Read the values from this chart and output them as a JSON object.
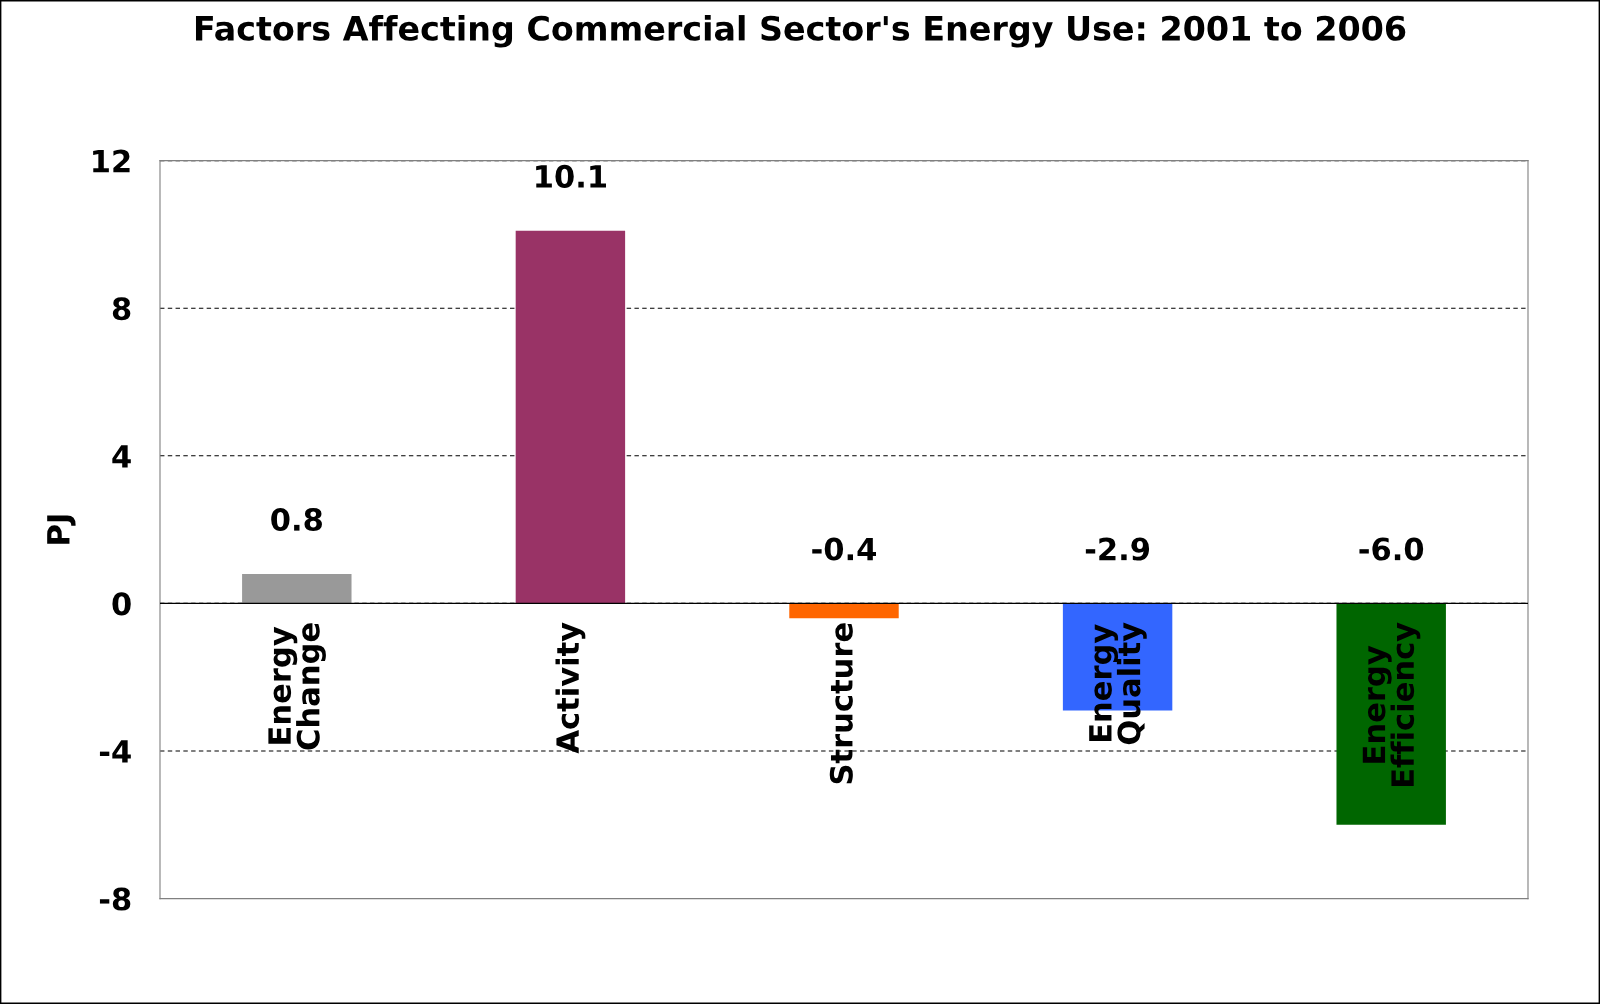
{
  "chart_data": {
    "type": "bar",
    "title": "Factors Affecting Commercial Sector's Energy Use: 2001 to 2006",
    "ylabel": "PJ",
    "categories": [
      "Energy\nChange",
      "Activity",
      "Structure",
      "Energy\nQuality",
      "Energy\nEfficiency"
    ],
    "values": [
      0.8,
      10.1,
      -0.4,
      -2.9,
      -6.0
    ],
    "colors": [
      "#999999",
      "#993366",
      "#ff6600",
      "#3366ff",
      "#006600"
    ],
    "value_labels": [
      "0.8",
      "10.1",
      "-0.4",
      "-2.9",
      "-6.0"
    ],
    "ylim": [
      -8,
      12
    ],
    "yticks": [
      -8,
      -4,
      0,
      4,
      8,
      12
    ],
    "grid": "y"
  }
}
